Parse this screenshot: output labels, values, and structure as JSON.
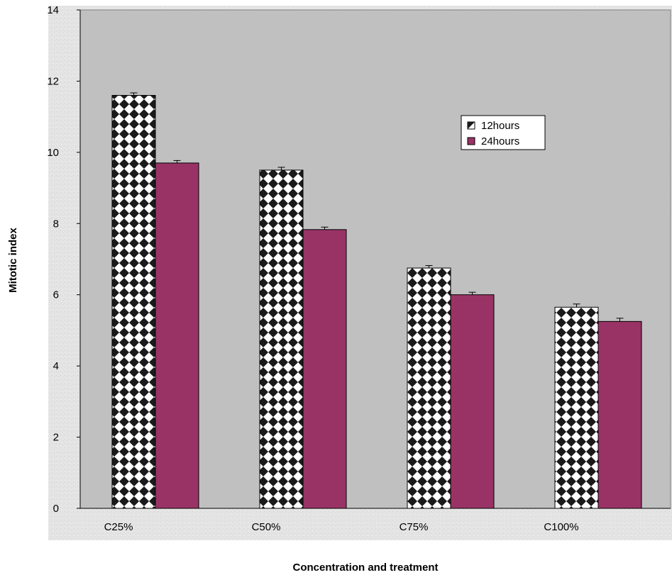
{
  "chart_data": {
    "type": "bar",
    "categories": [
      "C25%",
      "C50%",
      "C75%",
      "C100%"
    ],
    "series": [
      {
        "name": "12hours",
        "values": [
          11.6,
          9.5,
          6.75,
          5.65
        ],
        "errors": [
          0.07,
          0.08,
          0.07,
          0.09
        ],
        "pattern": "checkered-diamond"
      },
      {
        "name": "24hours",
        "values": [
          9.7,
          7.83,
          6.0,
          5.25
        ],
        "errors": [
          0.07,
          0.07,
          0.07,
          0.09
        ],
        "color": "#993366"
      }
    ],
    "title": "",
    "xlabel": "Concentration and treatment",
    "ylabel": "Mitotic index",
    "ylim": [
      0,
      14
    ],
    "yticks": [
      0,
      2,
      4,
      6,
      8,
      10,
      12,
      14
    ],
    "grid": false,
    "legend_position": "upper-right-inside",
    "plot_background": "#c0c0c0",
    "chart_background": "#e6e6e6"
  }
}
